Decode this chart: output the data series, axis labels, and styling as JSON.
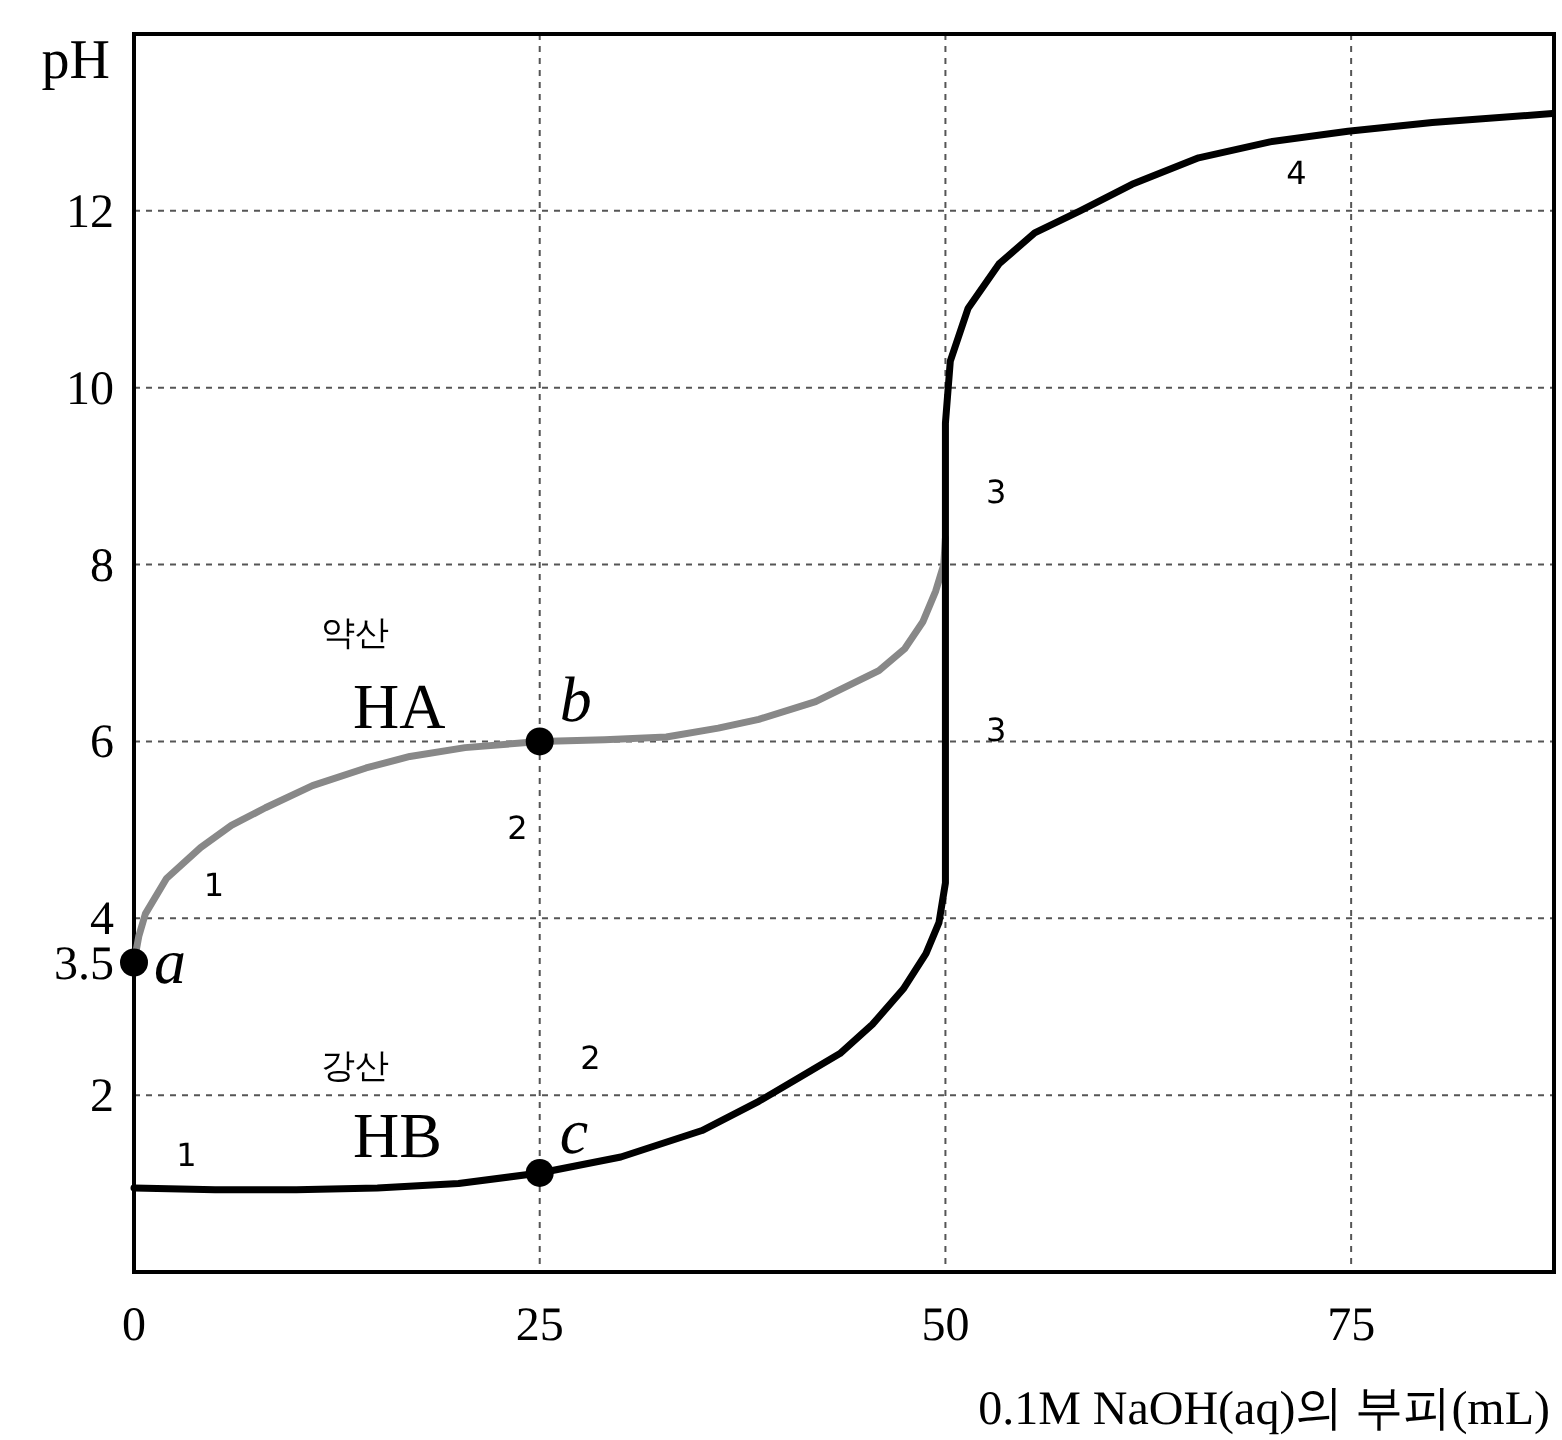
{
  "chart_data": {
    "type": "line",
    "xlabel": "0.1M NaOH(aq)의 부피(mL)",
    "ylabel": "pH",
    "xlim": [
      0,
      87.5
    ],
    "ylim": [
      0,
      14
    ],
    "xticks": [
      0,
      25,
      50,
      75
    ],
    "yticks": [
      2,
      {
        "value": 3.5,
        "label": "3.5"
      },
      4,
      6,
      8,
      10,
      12
    ],
    "grid": true,
    "series": [
      {
        "color": "#888888",
        "x": [
          0,
          0.3,
          0.7,
          2,
          4.1,
          6,
          8.1,
          11,
          14.3,
          17,
          20.4,
          25,
          29,
          32.8,
          36,
          38.5,
          42,
          45.9,
          47.5,
          48.6,
          49.4,
          49.9,
          50
        ],
        "values": [
          3.5,
          3.8,
          4.05,
          4.45,
          4.8,
          5.05,
          5.25,
          5.5,
          5.7,
          5.83,
          5.93,
          6.0,
          6.02,
          6.05,
          6.15,
          6.25,
          6.45,
          6.8,
          7.05,
          7.35,
          7.7,
          8.0,
          8.3
        ]
      },
      {
        "color": "#000000",
        "x": [
          0,
          5,
          10,
          15,
          20,
          25,
          30,
          35,
          38.5,
          41,
          43.5,
          45.5,
          47.4,
          48.8,
          49.6,
          50,
          50,
          50.3,
          51.4,
          53.3,
          55.5,
          58.3,
          61.5,
          65.6,
          70,
          74.8,
          80,
          87.4
        ],
        "values": [
          0.95,
          0.93,
          0.93,
          0.95,
          1.0,
          1.12,
          1.3,
          1.6,
          1.93,
          2.2,
          2.47,
          2.8,
          3.2,
          3.6,
          3.95,
          4.4,
          9.6,
          10.3,
          10.9,
          11.4,
          11.75,
          12.0,
          12.3,
          12.6,
          12.78,
          12.9,
          13.0,
          13.1
        ]
      },
      {
        "type": "scatter",
        "color": "#000000",
        "marker": "circle",
        "x": [
          0,
          25,
          25
        ],
        "values": [
          3.5,
          6.0,
          1.12
        ],
        "value_labels": [
          "a",
          "b",
          "c"
        ]
      }
    ],
    "annotations": [
      "약산",
      "HA",
      "강산",
      "HB",
      "1",
      "2",
      "1",
      "2",
      "3",
      "3",
      "4"
    ]
  }
}
